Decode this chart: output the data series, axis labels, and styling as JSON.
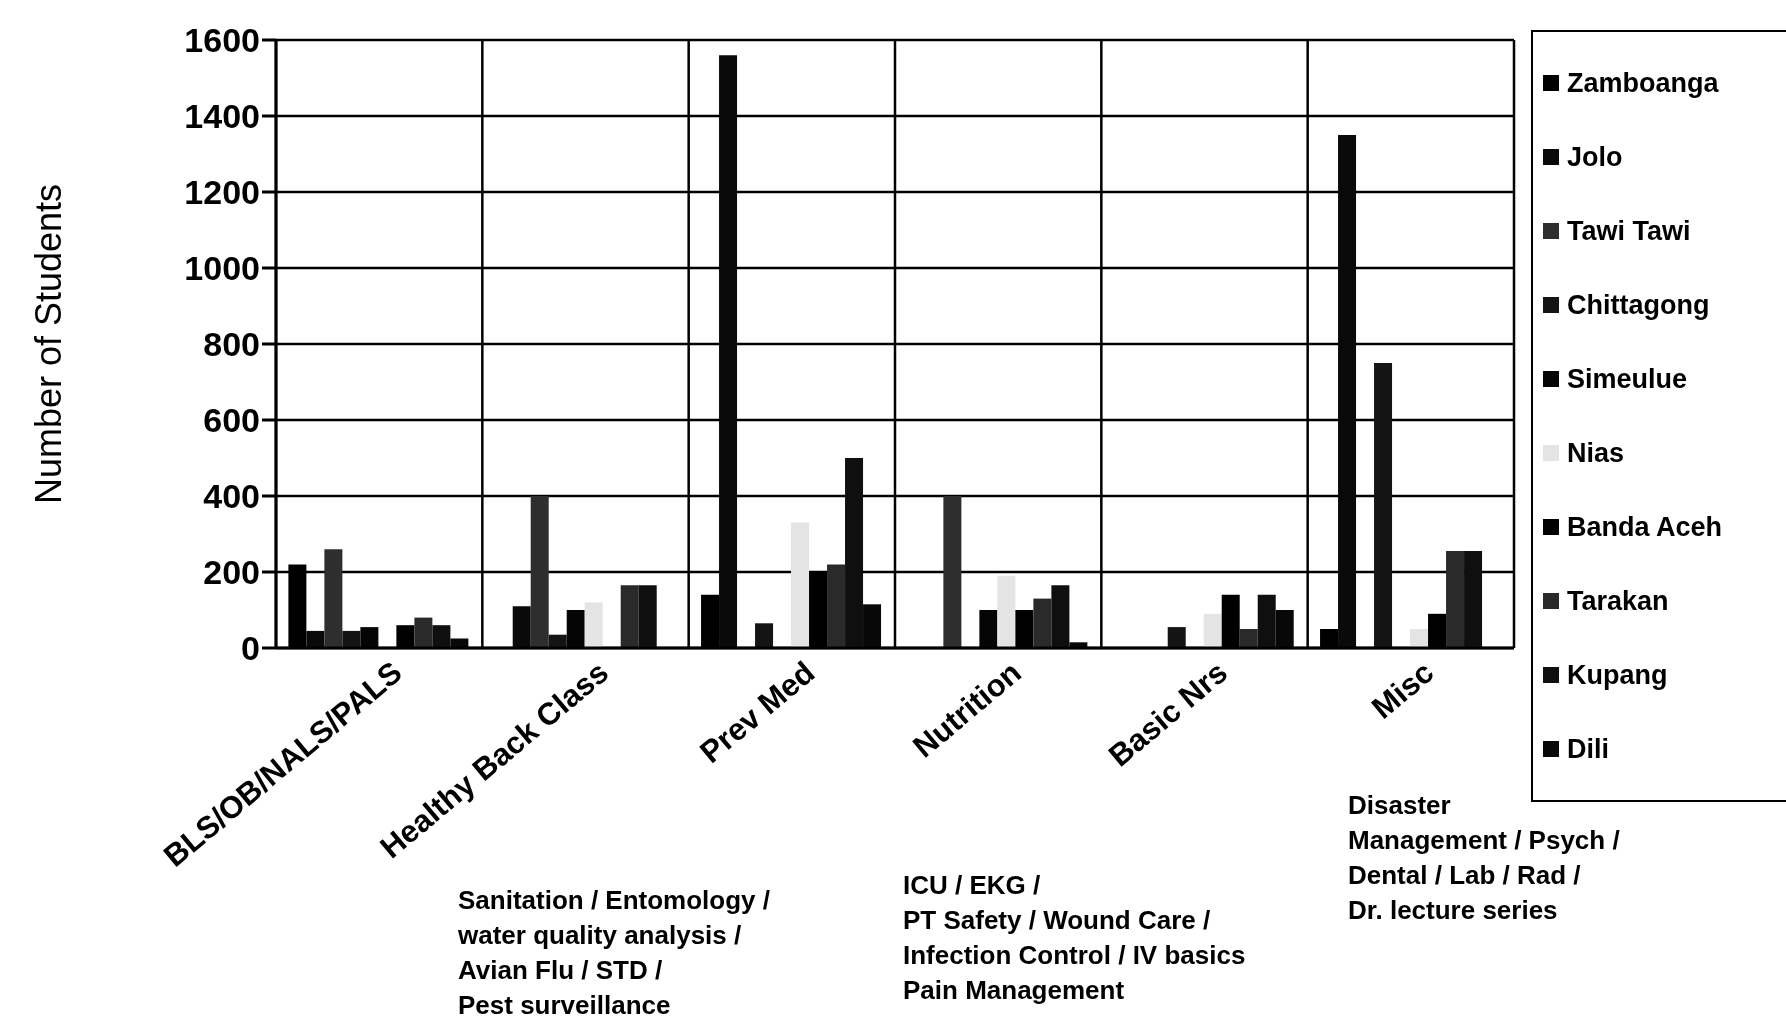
{
  "chart_data": {
    "type": "bar",
    "ylabel": "Number of Students",
    "categories": [
      "BLS/OB/NALS/PALS",
      "Healthy Back Class",
      "Prev Med",
      "Nutrition",
      "Basic Nrs",
      "Misc"
    ],
    "series": [
      {
        "name": "Zamboanga",
        "color": "#000000",
        "values": [
          220,
          0,
          140,
          0,
          0,
          50
        ]
      },
      {
        "name": "Jolo",
        "color": "#0a0a0a",
        "values": [
          45,
          110,
          1560,
          0,
          0,
          1350
        ]
      },
      {
        "name": "Tawi Tawi",
        "color": "#2e2e2e",
        "values": [
          260,
          400,
          0,
          400,
          0,
          0
        ]
      },
      {
        "name": "Chittagong",
        "color": "#141414",
        "values": [
          45,
          35,
          65,
          0,
          55,
          750
        ]
      },
      {
        "name": "Simeulue",
        "color": "#050505",
        "values": [
          55,
          100,
          0,
          100,
          0,
          0
        ]
      },
      {
        "name": "Nias",
        "color": "#e4e4e4",
        "values": [
          null,
          120,
          330,
          190,
          90,
          50
        ]
      },
      {
        "name": "Banda Aceh",
        "color": "#000000",
        "values": [
          60,
          0,
          200,
          100,
          140,
          90
        ]
      },
      {
        "name": "Tarakan",
        "color": "#2a2a2a",
        "values": [
          80,
          165,
          220,
          130,
          50,
          255
        ]
      },
      {
        "name": "Kupang",
        "color": "#0f0f0f",
        "values": [
          60,
          165,
          500,
          165,
          140,
          255
        ]
      },
      {
        "name": "Dili",
        "color": "#080808",
        "values": [
          25,
          0,
          115,
          15,
          100,
          0
        ]
      }
    ],
    "ylim": [
      0,
      1600
    ],
    "yticks": [
      0,
      200,
      400,
      600,
      800,
      1000,
      1200,
      1400,
      1600
    ],
    "grid": true,
    "legend": "right",
    "annotations": [
      "Sanitation / Entomology /\nwater quality analysis /\nAvian Flu / STD /\nPest surveillance",
      "ICU / EKG /\nPT Safety / Wound Care /\nInfection Control / IV basics\nPain Management",
      "Disaster\nManagement / Psych /\nDental / Lab / Rad /\nDr. lecture series"
    ]
  }
}
